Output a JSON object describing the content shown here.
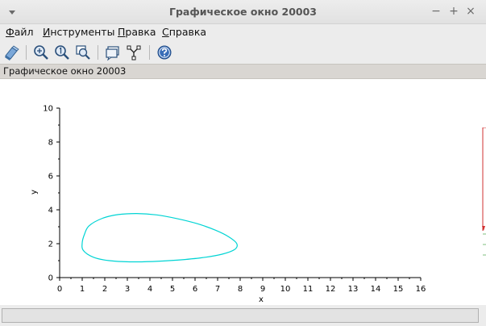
{
  "window": {
    "title": "Графическое окно 20003",
    "controls": {
      "minimize": "−",
      "maximize": "+",
      "close": "×"
    }
  },
  "menu": {
    "file": {
      "underline": "Ф",
      "rest": "айл"
    },
    "tools": {
      "underline": "И",
      "rest": "нструменты"
    },
    "edit": {
      "underline": "П",
      "rest": "равка"
    },
    "help": {
      "underline": "С",
      "rest": "правка"
    }
  },
  "toolbar": {
    "icons": [
      "rotate-icon",
      "zoom-in-icon",
      "zoom-original-icon",
      "zoom-rect-icon",
      "datatip-icon",
      "edit-axes-icon",
      "help-icon"
    ]
  },
  "infobar": {
    "text": "Графическое окно 20003"
  },
  "status": {
    "text": ""
  },
  "colors": {
    "curve": "#00d4d4",
    "axis": "#000000",
    "background": "#ffffff"
  },
  "chart_data": {
    "type": "line",
    "xlabel": "x",
    "ylabel": "y",
    "xlim": [
      0,
      16
    ],
    "ylim": [
      0,
      10
    ],
    "x_ticks": [
      "0",
      "1",
      "2",
      "3",
      "4",
      "5",
      "6",
      "7",
      "8",
      "9",
      "10",
      "11",
      "12",
      "13",
      "14",
      "15",
      "16"
    ],
    "y_ticks": [
      "0",
      "2",
      "4",
      "6",
      "8",
      "10"
    ],
    "grid": false,
    "series": [
      {
        "closed": true,
        "x": [
          1.3,
          1.9,
          2.6,
          3.4,
          4.3,
          5.2,
          6.1,
          6.9,
          7.5,
          7.85,
          7.75,
          7.2,
          6.3,
          5.2,
          4.1,
          3.1,
          2.2,
          1.5,
          1.05,
          1.0,
          1.1
        ],
        "y": [
          3.05,
          3.5,
          3.72,
          3.78,
          3.7,
          3.48,
          3.18,
          2.8,
          2.4,
          2.0,
          1.65,
          1.38,
          1.17,
          1.03,
          0.95,
          0.93,
          1.0,
          1.2,
          1.6,
          2.05,
          2.55
        ]
      }
    ]
  }
}
